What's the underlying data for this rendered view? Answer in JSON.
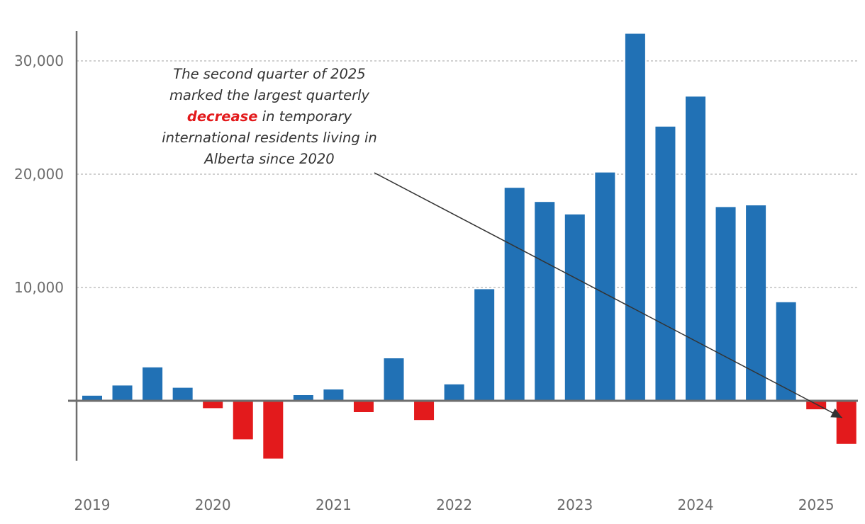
{
  "chart_data": {
    "type": "bar",
    "title": "",
    "xlabel": "",
    "ylabel": "",
    "ylim": [
      -5300,
      32500
    ],
    "grid": true,
    "y_ticks": [
      {
        "value": 30000,
        "label": "30,000"
      },
      {
        "value": 20000,
        "label": "20,000"
      },
      {
        "value": 10000,
        "label": "10,000"
      }
    ],
    "year_labels": [
      "2019",
      "2020",
      "2021",
      "2022",
      "2023",
      "2024",
      "2025"
    ],
    "categories": [
      "2019 Q1",
      "2019 Q2",
      "2019 Q3",
      "2019 Q4",
      "2020 Q1",
      "2020 Q2",
      "2020 Q3",
      "2020 Q4",
      "2021 Q1",
      "2021 Q2",
      "2021 Q3",
      "2021 Q4",
      "2022 Q1",
      "2022 Q2",
      "2022 Q3",
      "2022 Q4",
      "2023 Q1",
      "2023 Q2",
      "2023 Q3",
      "2023 Q4",
      "2024 Q1",
      "2024 Q2",
      "2024 Q3",
      "2024 Q4",
      "2025 Q1",
      "2025 Q2"
    ],
    "values": [
      450,
      1350,
      2950,
      1150,
      -650,
      -3400,
      -5100,
      500,
      1000,
      -1000,
      3750,
      -1700,
      1450,
      9850,
      18800,
      17550,
      16450,
      20150,
      32400,
      24200,
      26850,
      17100,
      17250,
      8700,
      -750,
      -3800
    ],
    "colors": {
      "positive": "#2171b5",
      "negative": "#e31a1c"
    },
    "annotation": {
      "line1": "The second quarter of 2025",
      "line2": "marked the largest quarterly",
      "highlight": "decrease",
      "line3_rest": " in temporary",
      "line4": "international residents living in",
      "line5": "Alberta since 2020",
      "arrow_target_category": "2025 Q2"
    }
  }
}
